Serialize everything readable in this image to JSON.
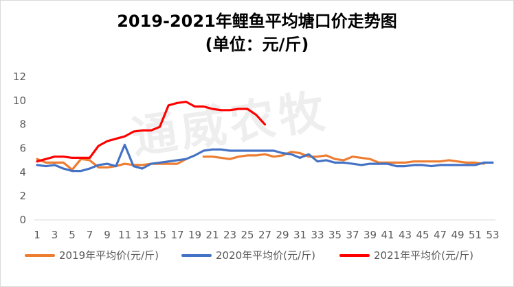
{
  "chart_data": {
    "type": "line",
    "title_line1": "2019-2021年鲤鱼平均塘口价走势图",
    "title_line2": "(单位：元/斤)",
    "watermark": "通威农牧",
    "ylim": [
      0,
      12
    ],
    "yticks": [
      0,
      2,
      4,
      6,
      8,
      10,
      12
    ],
    "xticks": [
      1,
      3,
      5,
      7,
      9,
      11,
      13,
      15,
      17,
      19,
      21,
      23,
      25,
      27,
      29,
      31,
      33,
      35,
      37,
      39,
      41,
      43,
      45,
      47,
      49,
      51,
      53
    ],
    "x_range": [
      1,
      53
    ],
    "grid": false,
    "legend_position": "bottom",
    "series": [
      {
        "name": "2019年平均价(元/斤)",
        "color": "#ED7D31",
        "values": [
          5.1,
          4.8,
          4.8,
          4.8,
          4.2,
          5.1,
          5.0,
          4.4,
          4.4,
          4.5,
          4.7,
          4.6,
          4.6,
          4.7,
          4.7,
          4.7,
          4.7,
          5.1,
          null,
          5.3,
          5.3,
          5.2,
          5.1,
          5.3,
          5.4,
          5.4,
          5.5,
          5.3,
          5.4,
          5.7,
          5.6,
          5.3,
          5.3,
          5.4,
          5.1,
          5.0,
          5.3,
          5.2,
          5.1,
          4.8,
          4.8,
          4.8,
          4.8,
          4.9,
          4.9,
          4.9,
          4.9,
          5.0,
          4.9,
          4.8,
          4.8,
          4.7,
          null
        ]
      },
      {
        "name": "2020年平均价(元/斤)",
        "color": "#4472C4",
        "values": [
          4.6,
          4.5,
          4.6,
          4.3,
          4.1,
          4.1,
          4.3,
          4.6,
          4.7,
          4.5,
          6.3,
          4.5,
          4.3,
          4.7,
          4.8,
          4.9,
          5.0,
          5.1,
          5.4,
          5.8,
          5.9,
          5.9,
          5.8,
          5.8,
          5.8,
          5.8,
          5.8,
          5.8,
          5.6,
          5.5,
          5.2,
          5.5,
          4.9,
          5.0,
          4.8,
          4.8,
          4.7,
          4.6,
          4.7,
          4.7,
          4.7,
          4.5,
          4.5,
          4.6,
          4.6,
          4.5,
          4.6,
          4.6,
          4.6,
          4.6,
          4.6,
          4.8,
          4.8
        ]
      },
      {
        "name": "2021年平均价(元/斤)",
        "color": "#FF0000",
        "values": [
          4.9,
          5.1,
          5.3,
          5.3,
          5.2,
          5.2,
          5.2,
          6.2,
          6.6,
          6.8,
          7.0,
          7.4,
          7.5,
          7.5,
          7.8,
          9.6,
          9.8,
          9.9,
          9.5,
          9.5,
          9.3,
          9.2,
          9.2,
          9.3,
          9.3,
          8.8,
          8.0
        ]
      }
    ]
  }
}
